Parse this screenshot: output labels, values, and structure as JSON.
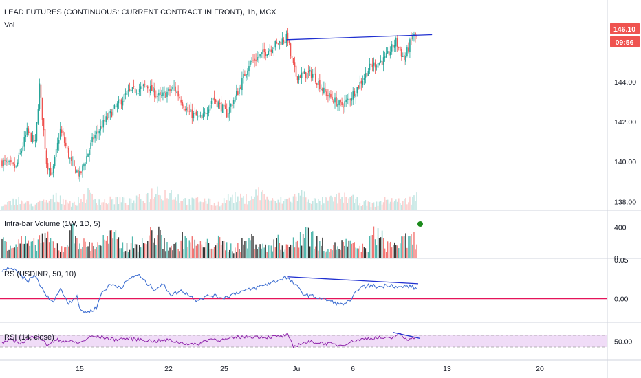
{
  "colors": {
    "up": "#26a69a",
    "down": "#ef5350",
    "trendline": "#1f2fd0",
    "rs_line": "#3f6fd1",
    "rs_zero": "#e5145a",
    "rsi_line": "#8e24aa",
    "rsi_band": "#f0dcf7",
    "price_tag": "#ef5350"
  },
  "header": {
    "title": "LEAD FUTURES (CONTINUOUS: CURRENT CONTRACT IN FRONT), 1h, MCX",
    "vol_label": "Vol"
  },
  "price_tag": {
    "price": "146.10",
    "countdown": "09:56"
  },
  "chart_data": [
    {
      "type": "candlestick",
      "panel": "price",
      "ylim": [
        137.6,
        147.4
      ],
      "y_ticks": [
        "144.00",
        "142.00",
        "140.00",
        "138.00"
      ],
      "y_tick_values": [
        144,
        142,
        140,
        138
      ],
      "x_ticks": [
        "15",
        "22",
        "25",
        "Jul",
        "6",
        "13",
        "20"
      ],
      "anchors": [
        [
          0,
          140.0
        ],
        [
          10,
          139.7
        ],
        [
          18,
          141.5
        ],
        [
          24,
          140.9
        ],
        [
          27,
          143.8
        ],
        [
          32,
          140.0
        ],
        [
          36,
          139.3
        ],
        [
          42,
          141.6
        ],
        [
          50,
          139.9
        ],
        [
          56,
          139.3
        ],
        [
          66,
          141.2
        ],
        [
          76,
          142.2
        ],
        [
          90,
          143.4
        ],
        [
          104,
          143.8
        ],
        [
          114,
          143.2
        ],
        [
          124,
          143.7
        ],
        [
          134,
          142.5
        ],
        [
          144,
          142.1
        ],
        [
          152,
          143.2
        ],
        [
          162,
          142.4
        ],
        [
          170,
          143.5
        ],
        [
          178,
          144.9
        ],
        [
          188,
          145.4
        ],
        [
          200,
          146.0
        ],
        [
          206,
          146.2
        ],
        [
          208,
          145.3
        ],
        [
          212,
          144.3
        ],
        [
          224,
          144.4
        ],
        [
          232,
          143.5
        ],
        [
          244,
          142.8
        ],
        [
          250,
          143.1
        ],
        [
          256,
          143.7
        ],
        [
          266,
          144.8
        ],
        [
          276,
          145.1
        ],
        [
          284,
          146.0
        ],
        [
          290,
          145.1
        ],
        [
          296,
          146.3
        ],
        [
          299,
          146.2
        ]
      ],
      "trendline": [
        [
          205,
          146.1
        ],
        [
          310,
          146.35
        ]
      ]
    },
    {
      "type": "bar",
      "panel": "volume",
      "values": [
        1,
        4,
        2,
        3,
        5,
        2,
        6,
        3,
        4,
        3,
        5,
        8,
        6,
        3,
        4,
        2,
        5,
        4,
        7,
        3,
        4,
        6,
        3,
        4,
        5,
        3,
        2,
        4,
        3,
        5
      ]
    },
    {
      "type": "bar",
      "panel": "intra-bar-volume",
      "label": "Intra-bar Volume (1W, 1D, 5)",
      "ylim": [
        0,
        600
      ],
      "y_ticks": [
        "400",
        "0"
      ],
      "y_tick_values": [
        400,
        0
      ],
      "values": [
        310,
        210,
        260,
        180,
        340,
        220,
        150,
        400,
        210,
        190,
        260,
        330,
        170,
        230,
        210,
        420,
        240,
        160,
        300,
        220,
        180,
        260,
        200,
        150,
        230,
        290,
        140,
        260,
        200,
        220,
        480,
        250,
        190,
        170,
        230,
        160,
        150,
        410,
        200,
        220,
        260,
        300
      ]
    },
    {
      "type": "line",
      "panel": "relative-strength",
      "label": "RS (USDINR, 50, 10)",
      "ylim": [
        -0.03,
        0.05
      ],
      "y_ticks": [
        "0.05",
        "0.00"
      ],
      "y_tick_values": [
        0.05,
        0.0
      ],
      "zero_line": 0.0,
      "anchors": [
        [
          0,
          0.035
        ],
        [
          6,
          0.04
        ],
        [
          12,
          0.032
        ],
        [
          18,
          0.022
        ],
        [
          24,
          0.03
        ],
        [
          30,
          0.008
        ],
        [
          36,
          -0.005
        ],
        [
          42,
          0.012
        ],
        [
          48,
          -0.006
        ],
        [
          54,
          0.004
        ],
        [
          56,
          -0.015
        ],
        [
          62,
          -0.018
        ],
        [
          68,
          -0.012
        ],
        [
          72,
          0.008
        ],
        [
          78,
          0.018
        ],
        [
          86,
          0.015
        ],
        [
          94,
          0.028
        ],
        [
          98,
          0.031
        ],
        [
          104,
          0.02
        ],
        [
          110,
          0.012
        ],
        [
          116,
          0.018
        ],
        [
          122,
          0.005
        ],
        [
          130,
          0.01
        ],
        [
          140,
          -0.002
        ],
        [
          150,
          0.004
        ],
        [
          160,
          0.001
        ],
        [
          170,
          0.008
        ],
        [
          180,
          0.012
        ],
        [
          190,
          0.018
        ],
        [
          200,
          0.024
        ],
        [
          204,
          0.028
        ],
        [
          210,
          0.02
        ],
        [
          218,
          0.005
        ],
        [
          226,
          0.002
        ],
        [
          236,
          -0.003
        ],
        [
          244,
          -0.008
        ],
        [
          252,
          -0.003
        ],
        [
          256,
          0.012
        ],
        [
          264,
          0.017
        ],
        [
          272,
          0.015
        ],
        [
          280,
          0.018
        ],
        [
          286,
          0.014
        ],
        [
          292,
          0.016
        ],
        [
          296,
          0.015
        ],
        [
          299,
          0.012
        ]
      ],
      "trendline": [
        [
          206,
          0.028
        ],
        [
          300,
          0.019
        ]
      ]
    },
    {
      "type": "line",
      "panel": "rsi",
      "label": "RSI (14, close)",
      "ylim": [
        20,
        80
      ],
      "y_ticks": [
        "50.00"
      ],
      "y_tick_values": [
        50
      ],
      "band": [
        40,
        60
      ],
      "anchors": [
        [
          0,
          48
        ],
        [
          8,
          52
        ],
        [
          14,
          47
        ],
        [
          20,
          55
        ],
        [
          26,
          60
        ],
        [
          32,
          44
        ],
        [
          40,
          52
        ],
        [
          48,
          50
        ],
        [
          56,
          47
        ],
        [
          64,
          58
        ],
        [
          72,
          57
        ],
        [
          80,
          53
        ],
        [
          90,
          55
        ],
        [
          100,
          53
        ],
        [
          110,
          50
        ],
        [
          120,
          52
        ],
        [
          130,
          47
        ],
        [
          140,
          44
        ],
        [
          150,
          54
        ],
        [
          160,
          52
        ],
        [
          170,
          57
        ],
        [
          180,
          58
        ],
        [
          190,
          57
        ],
        [
          200,
          58
        ],
        [
          206,
          60
        ],
        [
          210,
          40
        ],
        [
          216,
          47
        ],
        [
          224,
          49
        ],
        [
          234,
          46
        ],
        [
          244,
          43
        ],
        [
          254,
          51
        ],
        [
          264,
          55
        ],
        [
          272,
          56
        ],
        [
          280,
          54
        ],
        [
          286,
          63
        ],
        [
          292,
          52
        ],
        [
          296,
          58
        ],
        [
          299,
          55
        ]
      ],
      "trendline": [
        [
          282,
          65
        ],
        [
          301,
          55
        ]
      ]
    }
  ]
}
